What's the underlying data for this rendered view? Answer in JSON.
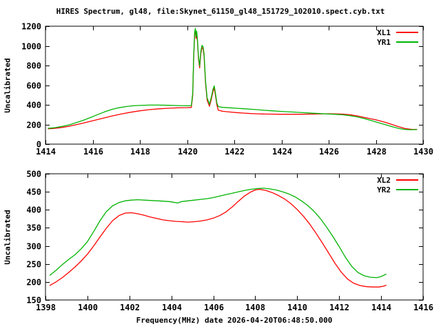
{
  "title": "HIRES Spectrum, gl48, file:Skynet_61150_gl48_151729_102010.spect.cyb.txt",
  "xlabel": "Frequency(MHz) date 2026-04-20T06:48:50.000",
  "colors": {
    "background": "#ffffff",
    "axis": "#000000",
    "text": "#000000",
    "red_series": "#ff0000",
    "green_series": "#00b400"
  },
  "chart_data": [
    {
      "type": "line",
      "ylabel": "Uncalibrated",
      "xlim": [
        1414,
        1430
      ],
      "ylim": [
        0,
        1200
      ],
      "xticks": [
        1414,
        1416,
        1418,
        1420,
        1422,
        1424,
        1426,
        1428,
        1430
      ],
      "yticks": [
        0,
        200,
        400,
        600,
        800,
        1000,
        1200
      ],
      "grid": false,
      "legend_position": "top-right-inside",
      "series": [
        {
          "name": "XL1",
          "color": "#ff0000",
          "points": [
            [
              1414.1,
              155
            ],
            [
              1414.4,
              161
            ],
            [
              1414.7,
              170
            ],
            [
              1415.0,
              182
            ],
            [
              1415.3,
              197
            ],
            [
              1415.6,
              214
            ],
            [
              1416.0,
              238
            ],
            [
              1416.4,
              262
            ],
            [
              1416.8,
              285
            ],
            [
              1417.2,
              306
            ],
            [
              1417.6,
              324
            ],
            [
              1418.0,
              339
            ],
            [
              1418.4,
              351
            ],
            [
              1418.8,
              359
            ],
            [
              1419.2,
              365
            ],
            [
              1419.6,
              369
            ],
            [
              1420.0,
              371
            ],
            [
              1420.18,
              373
            ],
            [
              1420.24,
              500
            ],
            [
              1420.28,
              878
            ],
            [
              1420.32,
              1118
            ],
            [
              1420.35,
              1160
            ],
            [
              1420.38,
              1075
            ],
            [
              1420.41,
              1128
            ],
            [
              1420.44,
              1040
            ],
            [
              1420.48,
              880
            ],
            [
              1420.53,
              775
            ],
            [
              1420.58,
              918
            ],
            [
              1420.63,
              985
            ],
            [
              1420.68,
              968
            ],
            [
              1420.72,
              893
            ],
            [
              1420.78,
              628
            ],
            [
              1420.85,
              448
            ],
            [
              1420.95,
              385
            ],
            [
              1421.02,
              450
            ],
            [
              1421.1,
              540
            ],
            [
              1421.15,
              572
            ],
            [
              1421.2,
              500
            ],
            [
              1421.26,
              400
            ],
            [
              1421.32,
              345
            ],
            [
              1421.5,
              334
            ],
            [
              1421.8,
              327
            ],
            [
              1422.1,
              321
            ],
            [
              1422.4,
              316
            ],
            [
              1422.7,
              311
            ],
            [
              1423.0,
              308
            ],
            [
              1423.3,
              306
            ],
            [
              1423.6,
              305
            ],
            [
              1423.9,
              304
            ],
            [
              1424.2,
              304
            ],
            [
              1424.5,
              304
            ],
            [
              1424.8,
              304
            ],
            [
              1425.1,
              305
            ],
            [
              1425.4,
              306
            ],
            [
              1425.7,
              308
            ],
            [
              1426.0,
              309
            ],
            [
              1426.3,
              308
            ],
            [
              1426.6,
              305
            ],
            [
              1426.9,
              299
            ],
            [
              1427.2,
              288
            ],
            [
              1427.5,
              272
            ],
            [
              1428.0,
              248
            ],
            [
              1428.4,
              222
            ],
            [
              1428.7,
              198
            ],
            [
              1429.0,
              175
            ],
            [
              1429.25,
              158
            ],
            [
              1429.5,
              151
            ],
            [
              1429.75,
              150
            ]
          ]
        },
        {
          "name": "YR1",
          "color": "#00b400",
          "points": [
            [
              1414.1,
              160
            ],
            [
              1414.4,
              168
            ],
            [
              1414.7,
              180
            ],
            [
              1415.0,
              196
            ],
            [
              1415.3,
              218
            ],
            [
              1415.6,
              242
            ],
            [
              1415.9,
              270
            ],
            [
              1416.2,
              300
            ],
            [
              1416.5,
              328
            ],
            [
              1416.8,
              352
            ],
            [
              1417.1,
              370
            ],
            [
              1417.4,
              382
            ],
            [
              1417.7,
              390
            ],
            [
              1418.0,
              394
            ],
            [
              1418.4,
              397
            ],
            [
              1418.8,
              397
            ],
            [
              1419.2,
              395
            ],
            [
              1419.6,
              392
            ],
            [
              1420.0,
              390
            ],
            [
              1420.18,
              392
            ],
            [
              1420.24,
              520
            ],
            [
              1420.28,
              900
            ],
            [
              1420.32,
              1140
            ],
            [
              1420.35,
              1178
            ],
            [
              1420.38,
              1095
            ],
            [
              1420.41,
              1150
            ],
            [
              1420.44,
              1060
            ],
            [
              1420.48,
              900
            ],
            [
              1420.53,
              795
            ],
            [
              1420.58,
              940
            ],
            [
              1420.63,
              1005
            ],
            [
              1420.68,
              990
            ],
            [
              1420.72,
              915
            ],
            [
              1420.78,
              650
            ],
            [
              1420.85,
              470
            ],
            [
              1420.95,
              405
            ],
            [
              1421.02,
              470
            ],
            [
              1421.1,
              560
            ],
            [
              1421.15,
              592
            ],
            [
              1421.2,
              520
            ],
            [
              1421.26,
              420
            ],
            [
              1421.32,
              382
            ],
            [
              1421.5,
              374
            ],
            [
              1421.8,
              370
            ],
            [
              1422.1,
              365
            ],
            [
              1422.4,
              360
            ],
            [
              1422.7,
              355
            ],
            [
              1423.0,
              350
            ],
            [
              1423.3,
              344
            ],
            [
              1423.6,
              339
            ],
            [
              1423.9,
              334
            ],
            [
              1424.2,
              330
            ],
            [
              1424.5,
              326
            ],
            [
              1424.8,
              322
            ],
            [
              1425.1,
              318
            ],
            [
              1425.4,
              314
            ],
            [
              1425.7,
              310
            ],
            [
              1426.0,
              306
            ],
            [
              1426.3,
              303
            ],
            [
              1426.6,
              298
            ],
            [
              1426.9,
              290
            ],
            [
              1427.2,
              277
            ],
            [
              1427.5,
              260
            ],
            [
              1427.8,
              240
            ],
            [
              1428.1,
              218
            ],
            [
              1428.4,
              198
            ],
            [
              1428.7,
              176
            ],
            [
              1429.0,
              158
            ],
            [
              1429.2,
              150
            ],
            [
              1429.45,
              147
            ],
            [
              1429.75,
              148
            ]
          ]
        }
      ]
    },
    {
      "type": "line",
      "ylabel": "Uncalibrated",
      "xlim": [
        1398,
        1416
      ],
      "ylim": [
        150,
        500
      ],
      "xticks": [
        1398,
        1400,
        1402,
        1404,
        1406,
        1408,
        1410,
        1412,
        1414,
        1416
      ],
      "yticks": [
        150,
        200,
        250,
        300,
        350,
        400,
        450,
        500
      ],
      "grid": false,
      "legend_position": "top-right-inside",
      "series": [
        {
          "name": "XL2",
          "color": "#ff0000",
          "points": [
            [
              1398.2,
              190
            ],
            [
              1398.5,
              200
            ],
            [
              1398.8,
              212
            ],
            [
              1399.1,
              226
            ],
            [
              1399.4,
              241
            ],
            [
              1399.7,
              258
            ],
            [
              1400.0,
              277
            ],
            [
              1400.3,
              300
            ],
            [
              1400.6,
              325
            ],
            [
              1400.9,
              349
            ],
            [
              1401.2,
              370
            ],
            [
              1401.5,
              384
            ],
            [
              1401.8,
              391
            ],
            [
              1402.1,
              392
            ],
            [
              1402.4,
              389
            ],
            [
              1402.7,
              385
            ],
            [
              1403.0,
              380
            ],
            [
              1403.3,
              376
            ],
            [
              1403.6,
              372
            ],
            [
              1403.9,
              370
            ],
            [
              1404.2,
              368
            ],
            [
              1404.5,
              367
            ],
            [
              1404.8,
              366
            ],
            [
              1405.1,
              367
            ],
            [
              1405.4,
              369
            ],
            [
              1405.7,
              372
            ],
            [
              1406.0,
              377
            ],
            [
              1406.3,
              384
            ],
            [
              1406.6,
              394
            ],
            [
              1406.9,
              408
            ],
            [
              1407.2,
              424
            ],
            [
              1407.5,
              439
            ],
            [
              1407.8,
              450
            ],
            [
              1408.0,
              455
            ],
            [
              1408.2,
              457
            ],
            [
              1408.5,
              454
            ],
            [
              1408.8,
              448
            ],
            [
              1409.1,
              440
            ],
            [
              1409.4,
              430
            ],
            [
              1409.7,
              417
            ],
            [
              1410.0,
              401
            ],
            [
              1410.3,
              382
            ],
            [
              1410.6,
              360
            ],
            [
              1410.9,
              335
            ],
            [
              1411.2,
              308
            ],
            [
              1411.5,
              280
            ],
            [
              1411.8,
              252
            ],
            [
              1412.1,
              227
            ],
            [
              1412.4,
              208
            ],
            [
              1412.7,
              196
            ],
            [
              1413.0,
              190
            ],
            [
              1413.3,
              187
            ],
            [
              1413.6,
              186
            ],
            [
              1413.9,
              186
            ],
            [
              1414.1,
              188
            ],
            [
              1414.25,
              191
            ]
          ]
        },
        {
          "name": "YR2",
          "color": "#00b400",
          "points": [
            [
              1398.2,
              218
            ],
            [
              1398.5,
              232
            ],
            [
              1398.8,
              248
            ],
            [
              1399.1,
              262
            ],
            [
              1399.4,
              275
            ],
            [
              1399.7,
              292
            ],
            [
              1400.0,
              312
            ],
            [
              1400.3,
              340
            ],
            [
              1400.6,
              370
            ],
            [
              1400.9,
              395
            ],
            [
              1401.2,
              411
            ],
            [
              1401.5,
              420
            ],
            [
              1401.8,
              425
            ],
            [
              1402.1,
              427
            ],
            [
              1402.4,
              428
            ],
            [
              1402.7,
              427
            ],
            [
              1403.0,
              426
            ],
            [
              1403.3,
              425
            ],
            [
              1403.6,
              424
            ],
            [
              1403.9,
              423
            ],
            [
              1404.1,
              421
            ],
            [
              1404.3,
              419
            ],
            [
              1404.5,
              423
            ],
            [
              1404.8,
              425
            ],
            [
              1405.1,
              427
            ],
            [
              1405.4,
              429
            ],
            [
              1405.7,
              431
            ],
            [
              1406.0,
              434
            ],
            [
              1406.3,
              438
            ],
            [
              1406.6,
              442
            ],
            [
              1406.9,
              446
            ],
            [
              1407.2,
              450
            ],
            [
              1407.5,
              454
            ],
            [
              1407.8,
              457
            ],
            [
              1408.1,
              459
            ],
            [
              1408.4,
              460
            ],
            [
              1408.7,
              458
            ],
            [
              1409.0,
              455
            ],
            [
              1409.3,
              450
            ],
            [
              1409.6,
              444
            ],
            [
              1409.9,
              436
            ],
            [
              1410.2,
              425
            ],
            [
              1410.5,
              412
            ],
            [
              1410.8,
              396
            ],
            [
              1411.1,
              376
            ],
            [
              1411.4,
              352
            ],
            [
              1411.7,
              326
            ],
            [
              1412.0,
              298
            ],
            [
              1412.3,
              268
            ],
            [
              1412.6,
              243
            ],
            [
              1412.9,
              226
            ],
            [
              1413.2,
              217
            ],
            [
              1413.5,
              213
            ],
            [
              1413.8,
              212
            ],
            [
              1414.0,
              215
            ],
            [
              1414.25,
              222
            ]
          ]
        }
      ]
    }
  ]
}
